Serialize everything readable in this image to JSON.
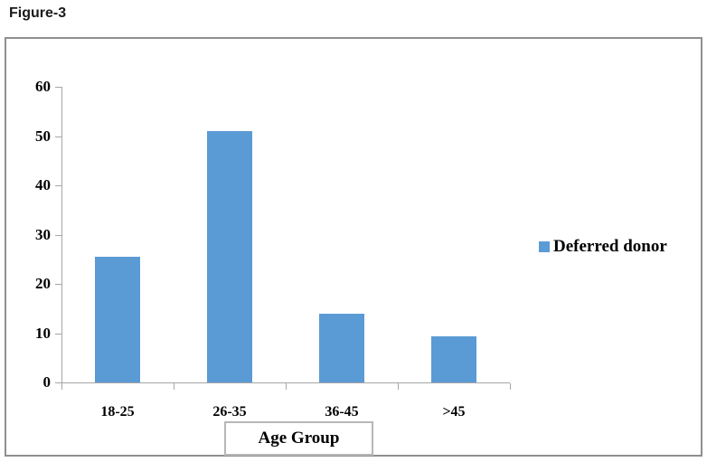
{
  "figure_label": "Figure-3",
  "chart_data": {
    "type": "bar",
    "categories": [
      "18-25",
      "26-35",
      "36-45",
      ">45"
    ],
    "series": [
      {
        "name": "Deferred donor",
        "values": [
          25.5,
          51,
          14,
          9.3
        ]
      }
    ],
    "title": "",
    "xlabel": "Age Group",
    "ylabel": "",
    "ylim": [
      0,
      60
    ],
    "ytick_step": 10,
    "yticks": [
      0,
      10,
      20,
      30,
      40,
      50,
      60
    ],
    "grid": false,
    "legend_position": "right",
    "bar_color": "#5b9bd5",
    "axis_color": "#a6a6a6",
    "frame_color": "#8f8f8f"
  }
}
